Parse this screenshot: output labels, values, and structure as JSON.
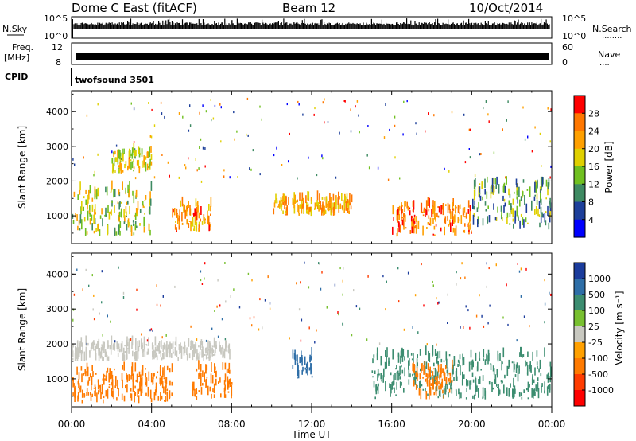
{
  "header": {
    "station": "Dome C East (fitACF)",
    "beam": "Beam 12",
    "date": "10/Oct/2014"
  },
  "strips": {
    "nsky_label": "N.Sky",
    "nsky_ticks": [
      "10^5",
      "10^0"
    ],
    "nsearch_label": "N.Search",
    "nsearch_dots": "........",
    "freq_label": "Freq.",
    "freq_unit": "[MHz]",
    "freq_ticks": [
      "12",
      "8"
    ],
    "nave_label": "Nave",
    "nave_dots": "....",
    "nave_ticks": [
      "60",
      "0"
    ],
    "cpid_label": "CPID",
    "cpid_text": "twofsound 3501"
  },
  "power_colorbar": {
    "title": "Power [dB]",
    "ticks": [
      "28",
      "24",
      "20",
      "16",
      "12",
      "8",
      "4"
    ],
    "colors": [
      "#ff0000",
      "#ff7700",
      "#ffa000",
      "#e0d000",
      "#70c020",
      "#3e8a62",
      "#1d3f9a",
      "#0000ff"
    ]
  },
  "velocity_colorbar": {
    "title": "Velocity [m s⁻¹]",
    "ticks": [
      "1000",
      "500",
      "100",
      "25",
      "-25",
      "-100",
      "-500",
      "-1000"
    ],
    "colors": [
      "#1b3c9c",
      "#2e6ea7",
      "#3c8d70",
      "#78c030",
      "#c8c8c0",
      "#ffa000",
      "#ff7a00",
      "#ff3c00",
      "#ff0000"
    ]
  },
  "chart_data": [
    {
      "type": "heatmap",
      "panel": "power",
      "ylabel": "Slant Range [km]",
      "ylim": [
        200,
        4600
      ],
      "yticks": [
        "4000",
        "3000",
        "2000",
        "1000"
      ],
      "xlim": [
        "00:00",
        "24:00"
      ],
      "approx_echo_bands": [
        {
          "hours": [
            0,
            4
          ],
          "range_km": [
            400,
            2100
          ],
          "power_db": [
            8,
            24
          ]
        },
        {
          "hours": [
            2,
            4
          ],
          "range_km": [
            2200,
            3000
          ],
          "power_db": [
            12,
            24
          ]
        },
        {
          "hours": [
            5,
            7
          ],
          "range_km": [
            500,
            1500
          ],
          "power_db": [
            16,
            30
          ]
        },
        {
          "hours": [
            10,
            14
          ],
          "range_km": [
            1000,
            1600
          ],
          "power_db": [
            16,
            28
          ]
        },
        {
          "hours": [
            16,
            20
          ],
          "range_km": [
            400,
            1500
          ],
          "power_db": [
            20,
            30
          ]
        },
        {
          "hours": [
            20,
            24
          ],
          "range_km": [
            600,
            2300
          ],
          "power_db": [
            4,
            20
          ]
        }
      ]
    },
    {
      "type": "heatmap",
      "panel": "velocity",
      "ylabel": "Slant Range [km]",
      "xlabel": "Time UT",
      "ylim": [
        200,
        4600
      ],
      "yticks": [
        "4000",
        "3000",
        "2000",
        "1000"
      ],
      "xticks": [
        "00:00",
        "04:00",
        "08:00",
        "12:00",
        "16:00",
        "20:00",
        "00:00"
      ],
      "approx_echo_bands": [
        {
          "hours": [
            0,
            5
          ],
          "range_km": [
            300,
            1500
          ],
          "velocity_ms": [
            -500,
            -100
          ]
        },
        {
          "hours": [
            0,
            8
          ],
          "range_km": [
            1500,
            2100
          ],
          "velocity_ms": [
            -25,
            25
          ]
        },
        {
          "hours": [
            6,
            8
          ],
          "range_km": [
            400,
            1500
          ],
          "velocity_ms": [
            -500,
            -100
          ]
        },
        {
          "hours": [
            11,
            12
          ],
          "range_km": [
            1000,
            1800
          ],
          "velocity_ms": [
            500,
            1000
          ]
        },
        {
          "hours": [
            15,
            24
          ],
          "range_km": [
            400,
            2000
          ],
          "velocity_ms": [
            100,
            500
          ]
        },
        {
          "hours": [
            17,
            19
          ],
          "range_km": [
            400,
            1500
          ],
          "velocity_ms": [
            -500,
            -100
          ]
        }
      ]
    }
  ]
}
